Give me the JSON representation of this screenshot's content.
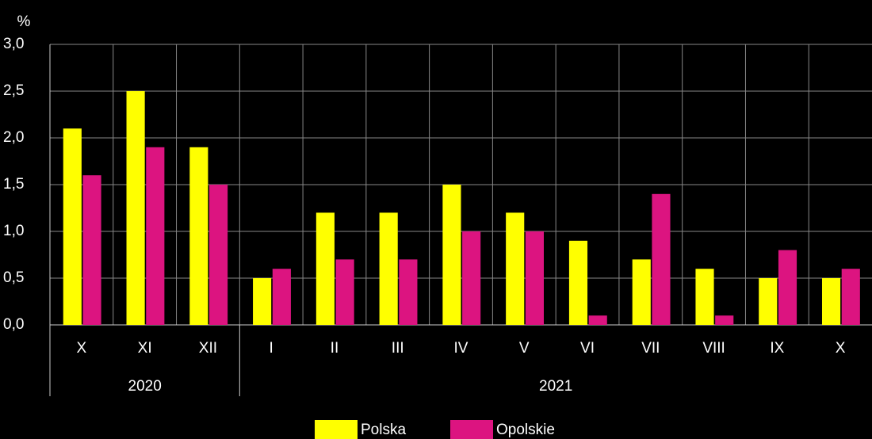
{
  "chart_data": {
    "type": "bar",
    "y_label": "%",
    "categories": [
      "X",
      "XI",
      "XII",
      "I",
      "II",
      "III",
      "IV",
      "V",
      "VI",
      "VII",
      "VIII",
      "IX",
      "X"
    ],
    "x_groups": [
      {
        "label": "2020",
        "start": 0,
        "end": 2
      },
      {
        "label": "2021",
        "start": 3,
        "end": 12
      }
    ],
    "series": [
      {
        "name": "Polska",
        "color": "#ffff00",
        "values": [
          2.1,
          2.5,
          1.9,
          0.5,
          1.2,
          1.2,
          1.5,
          1.2,
          0.9,
          0.7,
          0.6,
          0.5,
          0.5
        ]
      },
      {
        "name": "Opolskie",
        "color": "#dc1480",
        "values": [
          1.6,
          1.9,
          1.5,
          0.6,
          0.7,
          0.7,
          1.0,
          1.0,
          0.1,
          1.4,
          0.1,
          0.8,
          0.6
        ]
      }
    ],
    "ylim": [
      0,
      3
    ],
    "yticks": [
      {
        "value": 0,
        "label": "0,0"
      },
      {
        "value": 0.5,
        "label": "0,5"
      },
      {
        "value": 1,
        "label": "1,0"
      },
      {
        "value": 1.5,
        "label": "1,5"
      },
      {
        "value": 2,
        "label": "2,0"
      },
      {
        "value": 2.5,
        "label": "2,5"
      },
      {
        "value": 3,
        "label": "3,0"
      }
    ],
    "grid": true
  }
}
